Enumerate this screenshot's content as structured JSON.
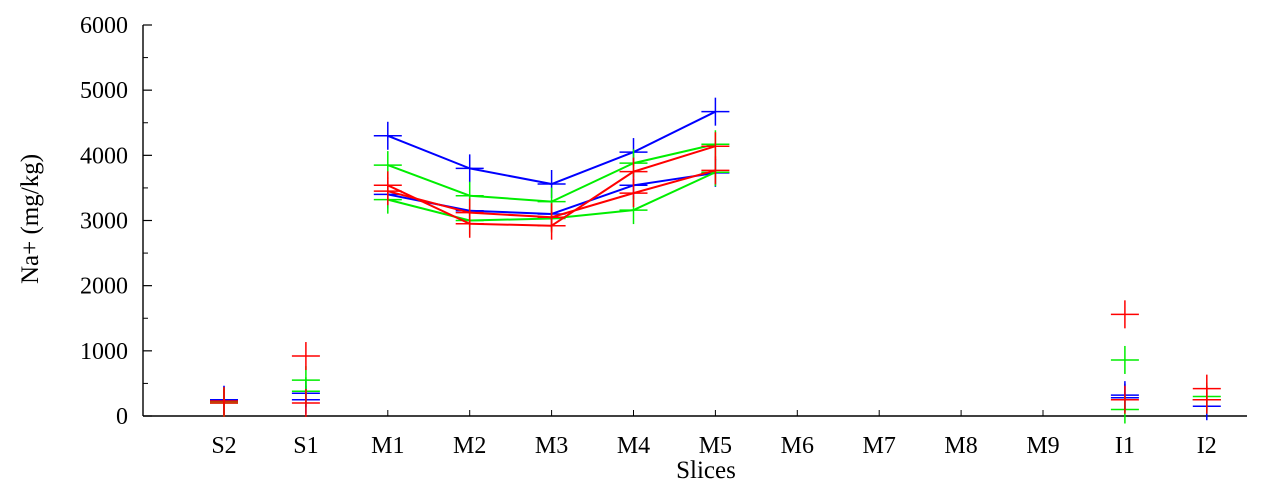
{
  "chart_data": {
    "type": "line",
    "xlabel": "Slices",
    "ylabel": "Na+ (mg/kg)",
    "categories": [
      "S2",
      "S1",
      "M1",
      "M2",
      "M3",
      "M4",
      "M5",
      "M6",
      "M7",
      "M8",
      "M9",
      "I1",
      "I2"
    ],
    "ylim": [
      0,
      6000
    ],
    "yticks": [
      0,
      1000,
      2000,
      3000,
      4000,
      5000,
      6000
    ],
    "grid": false,
    "marker": "plus",
    "series": [
      {
        "color": "#0000ff",
        "values": [
          250,
          350,
          4300,
          3800,
          3560,
          4050,
          4670,
          null,
          null,
          null,
          null,
          320,
          150
        ]
      },
      {
        "color": "#0000ff",
        "values": [
          240,
          250,
          3400,
          3150,
          3100,
          3540,
          3730,
          null,
          null,
          null,
          null,
          280,
          250
        ]
      },
      {
        "color": "#00ee00",
        "values": [
          220,
          550,
          3850,
          3380,
          3290,
          3880,
          4170,
          null,
          null,
          null,
          null,
          860,
          300
        ]
      },
      {
        "color": "#00ee00",
        "values": [
          200,
          380,
          3320,
          3000,
          3030,
          3160,
          3740,
          null,
          null,
          null,
          null,
          100,
          250
        ]
      },
      {
        "color": "#ff0000",
        "values": [
          230,
          920,
          3540,
          2950,
          2920,
          3750,
          4140,
          null,
          null,
          null,
          null,
          1560,
          420
        ]
      },
      {
        "color": "#ff0000",
        "values": [
          200,
          200,
          3450,
          3120,
          3050,
          3420,
          3770,
          null,
          null,
          null,
          null,
          250,
          250
        ]
      }
    ]
  }
}
